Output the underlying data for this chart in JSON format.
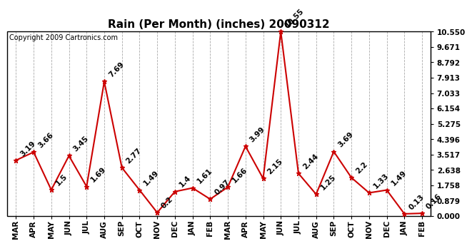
{
  "title": "Rain (Per Month) (inches) 20090312",
  "copyright": "Copyright 2009 Cartronics.com",
  "months": [
    "MAR",
    "APR",
    "MAY",
    "JUN",
    "JUL",
    "AUG",
    "SEP",
    "OCT",
    "NOV",
    "DEC",
    "JAN",
    "FEB",
    "MAR",
    "APR",
    "MAY",
    "JUN",
    "JUL",
    "AUG",
    "SEP",
    "OCT",
    "NOV",
    "DEC",
    "JAN",
    "FEB"
  ],
  "values": [
    3.19,
    3.66,
    1.5,
    3.45,
    1.69,
    7.69,
    2.77,
    1.49,
    0.2,
    1.4,
    1.61,
    0.97,
    1.66,
    3.99,
    2.15,
    10.55,
    2.44,
    1.25,
    3.69,
    2.2,
    1.33,
    1.49,
    0.13,
    0.16
  ],
  "line_color": "#cc0000",
  "marker": "*",
  "marker_size": 5,
  "bg_color": "#ffffff",
  "grid_color": "#aaaaaa",
  "label_color": "#000000",
  "ymin": 0.0,
  "ymax": 10.55,
  "yticks": [
    0.0,
    0.879,
    1.758,
    2.638,
    3.517,
    4.396,
    5.275,
    6.154,
    7.033,
    7.913,
    8.792,
    9.671,
    10.55
  ],
  "title_fontsize": 11,
  "copyright_fontsize": 7,
  "annotation_fontsize": 7.5,
  "tick_fontsize": 7.5,
  "annotation_rotation": 45
}
